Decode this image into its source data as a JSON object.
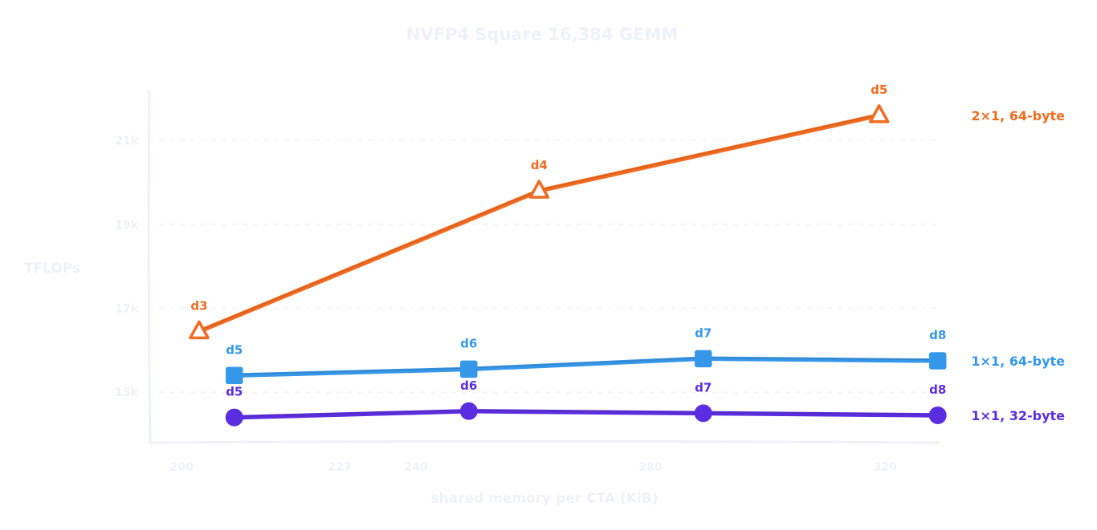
{
  "chart_data": {
    "type": "line",
    "title": "NVFP4 Square 16,384 GEMM",
    "xlabel": "shared memory per CTA (KiB)",
    "ylabel": "TFLOPs",
    "xlim": [
      193,
      330
    ],
    "ylim": [
      13800,
      22800
    ],
    "xticks": [
      200,
      227,
      240,
      280,
      320
    ],
    "yticks": [
      {
        "value": 15000,
        "label": "15k"
      },
      {
        "value": 17000,
        "label": "17k"
      },
      {
        "value": 19000,
        "label": "19k"
      },
      {
        "value": 21000,
        "label": "21k"
      }
    ],
    "grid": "horizontal-dashed",
    "legend": "right-end-labels",
    "series": [
      {
        "name": "2×1, 64-byte",
        "color": "#f26b21",
        "marker": "triangle",
        "points": [
          {
            "x": 203,
            "y": 16450,
            "label": "d3"
          },
          {
            "x": 261,
            "y": 19800,
            "label": "d4"
          },
          {
            "x": 319,
            "y": 21600,
            "label": "d5"
          }
        ]
      },
      {
        "name": "1×1, 64-byte",
        "color": "#3597ea",
        "marker": "square",
        "points": [
          {
            "x": 209,
            "y": 15400,
            "label": "d5"
          },
          {
            "x": 249,
            "y": 15550,
            "label": "d6"
          },
          {
            "x": 289,
            "y": 15800,
            "label": "d7"
          },
          {
            "x": 329,
            "y": 15750,
            "label": "d8"
          }
        ]
      },
      {
        "name": "1×1, 32-byte",
        "color": "#5a2ee0",
        "marker": "circle",
        "points": [
          {
            "x": 209,
            "y": 14400,
            "label": "d5"
          },
          {
            "x": 249,
            "y": 14550,
            "label": "d6"
          },
          {
            "x": 289,
            "y": 14500,
            "label": "d7"
          },
          {
            "x": 329,
            "y": 14450,
            "label": "d8"
          }
        ]
      }
    ]
  }
}
